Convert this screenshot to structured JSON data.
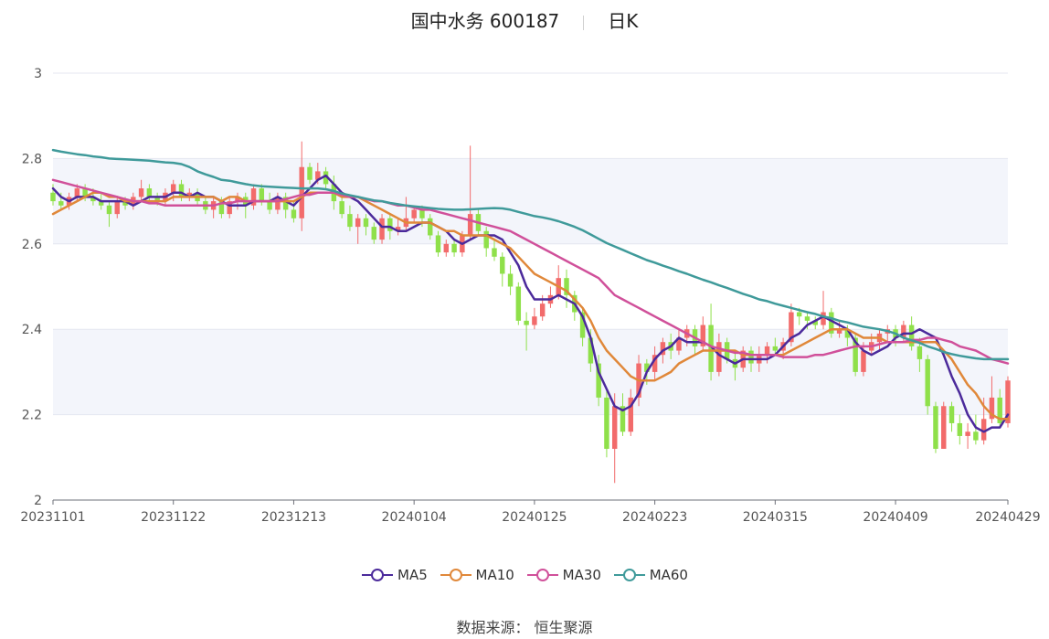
{
  "title": {
    "name": "国中水务 600187",
    "period": "日K"
  },
  "source": {
    "label": "数据来源：",
    "value": "恒生聚源"
  },
  "legend": [
    {
      "name": "MA5",
      "color": "#4b2a9b"
    },
    {
      "name": "MA10",
      "color": "#e0883a"
    },
    {
      "name": "MA30",
      "color": "#d0509a"
    },
    {
      "name": "MA60",
      "color": "#3f9a9a"
    }
  ],
  "chart_data": {
    "type": "candlestick",
    "title": "国中水务 600187",
    "ylim": [
      2,
      3
    ],
    "y_ticks": [
      "2",
      "2.2",
      "2.4",
      "2.6",
      "2.8",
      "3"
    ],
    "x_tick_labels": [
      {
        "label": "20231101",
        "index": 0
      },
      {
        "label": "20231122",
        "index": 15
      },
      {
        "label": "20231213",
        "index": 30
      },
      {
        "label": "20240104",
        "index": 45
      },
      {
        "label": "20240125",
        "index": 60
      },
      {
        "label": "20240223",
        "index": 75
      },
      {
        "label": "20240315",
        "index": 90
      },
      {
        "label": "20240409",
        "index": 105
      },
      {
        "label": "20240429",
        "index": 119
      }
    ],
    "up_color": "#f26b6b",
    "down_color": "#8fe04a",
    "candles": [
      [
        2.72,
        2.7,
        2.74,
        2.69
      ],
      [
        2.7,
        2.69,
        2.72,
        2.68
      ],
      [
        2.69,
        2.71,
        2.72,
        2.68
      ],
      [
        2.71,
        2.73,
        2.74,
        2.7
      ],
      [
        2.73,
        2.71,
        2.74,
        2.7
      ],
      [
        2.71,
        2.7,
        2.73,
        2.69
      ],
      [
        2.7,
        2.69,
        2.72,
        2.68
      ],
      [
        2.69,
        2.67,
        2.7,
        2.64
      ],
      [
        2.67,
        2.7,
        2.71,
        2.66
      ],
      [
        2.7,
        2.69,
        2.71,
        2.68
      ],
      [
        2.69,
        2.71,
        2.72,
        2.68
      ],
      [
        2.71,
        2.73,
        2.75,
        2.7
      ],
      [
        2.73,
        2.71,
        2.74,
        2.7
      ],
      [
        2.71,
        2.7,
        2.72,
        2.69
      ],
      [
        2.7,
        2.72,
        2.73,
        2.69
      ],
      [
        2.72,
        2.74,
        2.75,
        2.7
      ],
      [
        2.74,
        2.71,
        2.75,
        2.7
      ],
      [
        2.71,
        2.72,
        2.73,
        2.7
      ],
      [
        2.72,
        2.7,
        2.73,
        2.69
      ],
      [
        2.7,
        2.68,
        2.71,
        2.67
      ],
      [
        2.68,
        2.7,
        2.71,
        2.66
      ],
      [
        2.7,
        2.67,
        2.71,
        2.66
      ],
      [
        2.67,
        2.7,
        2.71,
        2.66
      ],
      [
        2.7,
        2.71,
        2.72,
        2.68
      ],
      [
        2.71,
        2.69,
        2.72,
        2.66
      ],
      [
        2.69,
        2.73,
        2.74,
        2.68
      ],
      [
        2.73,
        2.7,
        2.74,
        2.69
      ],
      [
        2.7,
        2.68,
        2.72,
        2.67
      ],
      [
        2.68,
        2.71,
        2.72,
        2.67
      ],
      [
        2.71,
        2.68,
        2.72,
        2.66
      ],
      [
        2.68,
        2.66,
        2.7,
        2.65
      ],
      [
        2.66,
        2.78,
        2.84,
        2.63
      ],
      [
        2.78,
        2.75,
        2.79,
        2.74
      ],
      [
        2.75,
        2.77,
        2.79,
        2.74
      ],
      [
        2.77,
        2.74,
        2.78,
        2.73
      ],
      [
        2.74,
        2.7,
        2.76,
        2.68
      ],
      [
        2.7,
        2.67,
        2.71,
        2.66
      ],
      [
        2.67,
        2.64,
        2.69,
        2.63
      ],
      [
        2.64,
        2.66,
        2.67,
        2.6
      ],
      [
        2.66,
        2.64,
        2.67,
        2.62
      ],
      [
        2.64,
        2.61,
        2.65,
        2.6
      ],
      [
        2.61,
        2.66,
        2.67,
        2.6
      ],
      [
        2.66,
        2.63,
        2.67,
        2.61
      ],
      [
        2.63,
        2.64,
        2.66,
        2.62
      ],
      [
        2.64,
        2.66,
        2.71,
        2.63
      ],
      [
        2.66,
        2.68,
        2.69,
        2.65
      ],
      [
        2.68,
        2.66,
        2.69,
        2.64
      ],
      [
        2.66,
        2.62,
        2.67,
        2.61
      ],
      [
        2.62,
        2.58,
        2.63,
        2.57
      ],
      [
        2.58,
        2.6,
        2.61,
        2.57
      ],
      [
        2.6,
        2.58,
        2.61,
        2.57
      ],
      [
        2.58,
        2.62,
        2.63,
        2.57
      ],
      [
        2.62,
        2.67,
        2.83,
        2.61
      ],
      [
        2.67,
        2.63,
        2.68,
        2.62
      ],
      [
        2.63,
        2.59,
        2.64,
        2.57
      ],
      [
        2.59,
        2.57,
        2.61,
        2.56
      ],
      [
        2.57,
        2.53,
        2.58,
        2.5
      ],
      [
        2.53,
        2.5,
        2.55,
        2.48
      ],
      [
        2.5,
        2.42,
        2.51,
        2.41
      ],
      [
        2.42,
        2.41,
        2.44,
        2.35
      ],
      [
        2.41,
        2.43,
        2.45,
        2.4
      ],
      [
        2.43,
        2.46,
        2.48,
        2.42
      ],
      [
        2.46,
        2.48,
        2.5,
        2.45
      ],
      [
        2.48,
        2.52,
        2.55,
        2.47
      ],
      [
        2.52,
        2.48,
        2.54,
        2.45
      ],
      [
        2.48,
        2.44,
        2.49,
        2.42
      ],
      [
        2.44,
        2.38,
        2.45,
        2.36
      ],
      [
        2.38,
        2.32,
        2.4,
        2.3
      ],
      [
        2.32,
        2.24,
        2.34,
        2.22
      ],
      [
        2.24,
        2.12,
        2.26,
        2.1
      ],
      [
        2.12,
        2.22,
        2.25,
        2.04
      ],
      [
        2.22,
        2.16,
        2.25,
        2.15
      ],
      [
        2.16,
        2.24,
        2.26,
        2.15
      ],
      [
        2.24,
        2.32,
        2.34,
        2.22
      ],
      [
        2.32,
        2.3,
        2.33,
        2.27
      ],
      [
        2.3,
        2.34,
        2.36,
        2.28
      ],
      [
        2.34,
        2.37,
        2.38,
        2.32
      ],
      [
        2.37,
        2.35,
        2.39,
        2.33
      ],
      [
        2.35,
        2.38,
        2.4,
        2.34
      ],
      [
        2.38,
        2.4,
        2.41,
        2.36
      ],
      [
        2.4,
        2.36,
        2.41,
        2.34
      ],
      [
        2.36,
        2.41,
        2.43,
        2.35
      ],
      [
        2.41,
        2.3,
        2.46,
        2.28
      ],
      [
        2.3,
        2.37,
        2.39,
        2.29
      ],
      [
        2.37,
        2.33,
        2.38,
        2.32
      ],
      [
        2.33,
        2.31,
        2.35,
        2.28
      ],
      [
        2.31,
        2.35,
        2.36,
        2.3
      ],
      [
        2.35,
        2.32,
        2.36,
        2.3
      ],
      [
        2.32,
        2.34,
        2.36,
        2.3
      ],
      [
        2.34,
        2.36,
        2.37,
        2.32
      ],
      [
        2.36,
        2.35,
        2.38,
        2.34
      ],
      [
        2.35,
        2.37,
        2.38,
        2.33
      ],
      [
        2.37,
        2.44,
        2.46,
        2.36
      ],
      [
        2.44,
        2.43,
        2.45,
        2.41
      ],
      [
        2.43,
        2.42,
        2.44,
        2.4
      ],
      [
        2.42,
        2.41,
        2.43,
        2.4
      ],
      [
        2.41,
        2.44,
        2.49,
        2.4
      ],
      [
        2.44,
        2.39,
        2.45,
        2.38
      ],
      [
        2.39,
        2.4,
        2.42,
        2.38
      ],
      [
        2.4,
        2.38,
        2.41,
        2.36
      ],
      [
        2.38,
        2.3,
        2.39,
        2.29
      ],
      [
        2.3,
        2.35,
        2.37,
        2.29
      ],
      [
        2.35,
        2.37,
        2.39,
        2.34
      ],
      [
        2.37,
        2.39,
        2.4,
        2.35
      ],
      [
        2.39,
        2.4,
        2.41,
        2.37
      ],
      [
        2.4,
        2.38,
        2.41,
        2.36
      ],
      [
        2.38,
        2.41,
        2.42,
        2.37
      ],
      [
        2.41,
        2.36,
        2.43,
        2.35
      ],
      [
        2.36,
        2.33,
        2.38,
        2.3
      ],
      [
        2.33,
        2.22,
        2.34,
        2.2
      ],
      [
        2.22,
        2.12,
        2.23,
        2.11
      ],
      [
        2.12,
        2.22,
        2.23,
        2.12
      ],
      [
        2.22,
        2.18,
        2.23,
        2.16
      ],
      [
        2.18,
        2.15,
        2.2,
        2.13
      ],
      [
        2.15,
        2.16,
        2.18,
        2.12
      ],
      [
        2.16,
        2.14,
        2.2,
        2.13
      ],
      [
        2.14,
        2.19,
        2.24,
        2.13
      ],
      [
        2.19,
        2.24,
        2.29,
        2.18
      ],
      [
        2.24,
        2.18,
        2.26,
        2.17
      ],
      [
        2.18,
        2.28,
        2.29,
        2.17
      ]
    ],
    "series": [
      {
        "name": "MA5",
        "color": "#4b2a9b",
        "values": [
          2.73,
          2.71,
          2.7,
          2.71,
          2.71,
          2.71,
          2.7,
          2.7,
          2.7,
          2.7,
          2.69,
          2.7,
          2.71,
          2.71,
          2.71,
          2.72,
          2.72,
          2.71,
          2.72,
          2.71,
          2.71,
          2.7,
          2.69,
          2.69,
          2.69,
          2.7,
          2.7,
          2.7,
          2.71,
          2.7,
          2.69,
          2.71,
          2.73,
          2.75,
          2.76,
          2.74,
          2.72,
          2.71,
          2.7,
          2.68,
          2.66,
          2.64,
          2.64,
          2.63,
          2.63,
          2.64,
          2.65,
          2.65,
          2.64,
          2.63,
          2.61,
          2.6,
          2.61,
          2.62,
          2.62,
          2.62,
          2.61,
          2.58,
          2.55,
          2.5,
          2.47,
          2.47,
          2.47,
          2.48,
          2.47,
          2.46,
          2.43,
          2.38,
          2.3,
          2.26,
          2.22,
          2.21,
          2.22,
          2.25,
          2.3,
          2.33,
          2.35,
          2.36,
          2.38,
          2.37,
          2.37,
          2.37,
          2.36,
          2.34,
          2.33,
          2.32,
          2.33,
          2.33,
          2.33,
          2.33,
          2.34,
          2.36,
          2.38,
          2.39,
          2.41,
          2.42,
          2.43,
          2.42,
          2.41,
          2.4,
          2.37,
          2.35,
          2.34,
          2.35,
          2.36,
          2.38,
          2.39,
          2.39,
          2.4,
          2.39,
          2.38,
          2.34,
          2.29,
          2.25,
          2.2,
          2.17,
          2.16,
          2.17,
          2.17,
          2.2
        ]
      },
      {
        "name": "MA10",
        "color": "#e0883a",
        "values": [
          2.67,
          2.68,
          2.69,
          2.7,
          2.71,
          2.72,
          2.72,
          2.71,
          2.71,
          2.7,
          2.7,
          2.7,
          2.7,
          2.7,
          2.7,
          2.71,
          2.71,
          2.71,
          2.71,
          2.71,
          2.71,
          2.7,
          2.71,
          2.71,
          2.7,
          2.7,
          2.7,
          2.7,
          2.7,
          2.7,
          2.7,
          2.71,
          2.72,
          2.72,
          2.72,
          2.72,
          2.71,
          2.71,
          2.71,
          2.7,
          2.69,
          2.68,
          2.67,
          2.66,
          2.65,
          2.65,
          2.65,
          2.65,
          2.64,
          2.63,
          2.63,
          2.62,
          2.62,
          2.62,
          2.62,
          2.61,
          2.6,
          2.59,
          2.57,
          2.55,
          2.53,
          2.52,
          2.51,
          2.5,
          2.49,
          2.47,
          2.45,
          2.42,
          2.38,
          2.35,
          2.33,
          2.31,
          2.29,
          2.28,
          2.28,
          2.28,
          2.29,
          2.3,
          2.32,
          2.33,
          2.34,
          2.35,
          2.35,
          2.35,
          2.35,
          2.35,
          2.34,
          2.34,
          2.34,
          2.34,
          2.34,
          2.34,
          2.35,
          2.36,
          2.37,
          2.38,
          2.39,
          2.4,
          2.4,
          2.4,
          2.39,
          2.38,
          2.38,
          2.38,
          2.37,
          2.37,
          2.37,
          2.37,
          2.37,
          2.37,
          2.37,
          2.35,
          2.33,
          2.3,
          2.27,
          2.25,
          2.22,
          2.2,
          2.19,
          2.19
        ]
      },
      {
        "name": "MA30",
        "color": "#d0509a",
        "values": [
          2.75,
          2.745,
          2.74,
          2.735,
          2.73,
          2.725,
          2.72,
          2.715,
          2.71,
          2.705,
          2.7,
          2.7,
          2.695,
          2.695,
          2.69,
          2.69,
          2.69,
          2.69,
          2.69,
          2.69,
          2.69,
          2.695,
          2.695,
          2.7,
          2.7,
          2.7,
          2.7,
          2.7,
          2.7,
          2.705,
          2.71,
          2.715,
          2.715,
          2.72,
          2.72,
          2.72,
          2.715,
          2.71,
          2.71,
          2.705,
          2.7,
          2.7,
          2.695,
          2.69,
          2.69,
          2.685,
          2.68,
          2.68,
          2.675,
          2.67,
          2.665,
          2.66,
          2.655,
          2.65,
          2.645,
          2.64,
          2.635,
          2.63,
          2.62,
          2.61,
          2.6,
          2.59,
          2.58,
          2.57,
          2.56,
          2.55,
          2.54,
          2.53,
          2.52,
          2.5,
          2.48,
          2.47,
          2.46,
          2.45,
          2.44,
          2.43,
          2.42,
          2.41,
          2.4,
          2.39,
          2.38,
          2.37,
          2.36,
          2.355,
          2.35,
          2.345,
          2.345,
          2.34,
          2.34,
          2.34,
          2.34,
          2.335,
          2.335,
          2.335,
          2.335,
          2.34,
          2.34,
          2.345,
          2.35,
          2.355,
          2.36,
          2.36,
          2.36,
          2.365,
          2.37,
          2.37,
          2.37,
          2.375,
          2.375,
          2.38,
          2.38,
          2.375,
          2.37,
          2.36,
          2.355,
          2.35,
          2.34,
          2.33,
          2.325,
          2.32
        ]
      },
      {
        "name": "MA60",
        "color": "#3f9a9a",
        "values": [
          2.82,
          2.816,
          2.813,
          2.81,
          2.808,
          2.805,
          2.803,
          2.8,
          2.799,
          2.798,
          2.797,
          2.796,
          2.795,
          2.793,
          2.791,
          2.79,
          2.787,
          2.78,
          2.77,
          2.763,
          2.757,
          2.75,
          2.748,
          2.744,
          2.74,
          2.737,
          2.735,
          2.734,
          2.733,
          2.732,
          2.731,
          2.73,
          2.73,
          2.73,
          2.728,
          2.724,
          2.718,
          2.714,
          2.71,
          2.706,
          2.702,
          2.7,
          2.696,
          2.693,
          2.69,
          2.688,
          2.686,
          2.684,
          2.682,
          2.681,
          2.68,
          2.68,
          2.681,
          2.682,
          2.683,
          2.684,
          2.683,
          2.68,
          2.675,
          2.67,
          2.665,
          2.662,
          2.658,
          2.653,
          2.647,
          2.64,
          2.632,
          2.622,
          2.612,
          2.602,
          2.594,
          2.586,
          2.578,
          2.57,
          2.562,
          2.556,
          2.549,
          2.543,
          2.536,
          2.53,
          2.523,
          2.516,
          2.51,
          2.503,
          2.497,
          2.49,
          2.483,
          2.477,
          2.47,
          2.466,
          2.46,
          2.455,
          2.45,
          2.445,
          2.44,
          2.436,
          2.43,
          2.426,
          2.42,
          2.416,
          2.411,
          2.406,
          2.403,
          2.4,
          2.396,
          2.39,
          2.38,
          2.374,
          2.368,
          2.36,
          2.354,
          2.347,
          2.342,
          2.338,
          2.335,
          2.332,
          2.33,
          2.33,
          2.33,
          2.33
        ]
      }
    ]
  }
}
